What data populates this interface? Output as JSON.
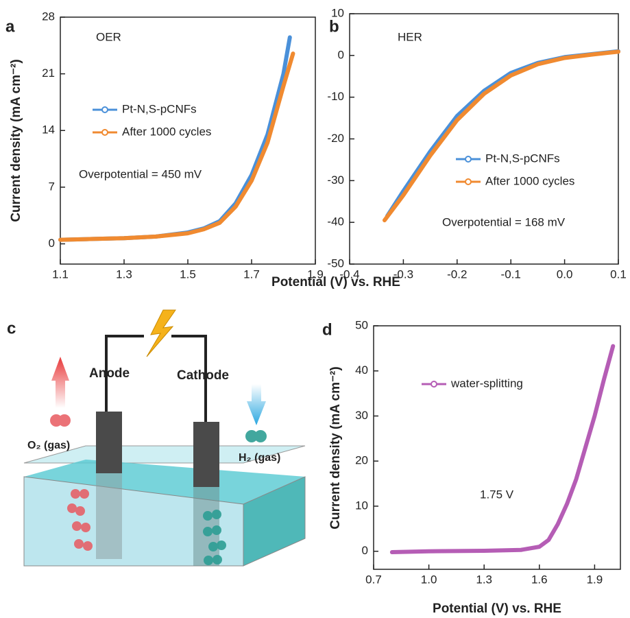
{
  "chart_data": [
    {
      "type": "line",
      "panel_label": "a",
      "annotation": "OER",
      "note": "Overpotential = 450 mV",
      "xlabel": "Potential (V) vs. RHE",
      "ylabel": "Current density (mA cm⁻²)",
      "xlim": [
        1.1,
        1.9
      ],
      "xticks": [
        1.1,
        1.3,
        1.5,
        1.7,
        1.9
      ],
      "ylim": [
        -2.5,
        28
      ],
      "yticks": [
        0,
        7,
        14,
        21,
        28
      ],
      "series": [
        {
          "name": "Pt-N,S-pCNFs",
          "color": "#4a90d9",
          "x": [
            1.1,
            1.2,
            1.3,
            1.4,
            1.5,
            1.55,
            1.6,
            1.65,
            1.7,
            1.75,
            1.8,
            1.82
          ],
          "values": [
            0.5,
            0.6,
            0.7,
            0.9,
            1.4,
            1.9,
            2.8,
            5,
            8.5,
            13.5,
            21,
            25.5
          ]
        },
        {
          "name": "After 1000 cycles",
          "color": "#f08a30",
          "x": [
            1.1,
            1.2,
            1.3,
            1.4,
            1.5,
            1.55,
            1.6,
            1.65,
            1.7,
            1.75,
            1.8,
            1.83
          ],
          "values": [
            0.5,
            0.6,
            0.7,
            0.9,
            1.3,
            1.8,
            2.6,
            4.6,
            7.8,
            12.5,
            19.5,
            23.5
          ]
        }
      ]
    },
    {
      "type": "line",
      "panel_label": "b",
      "annotation": "HER",
      "note": "Overpotential = 168 mV",
      "xlim": [
        -0.4,
        0.1
      ],
      "xticks": [
        -0.4,
        -0.3,
        -0.2,
        -0.1,
        {
          "value": 0,
          "label": "0.0"
        },
        0.1
      ],
      "ylim": [
        -50,
        10
      ],
      "yticks": [
        -50,
        -40,
        -30,
        -20,
        -10,
        0,
        10
      ],
      "series": [
        {
          "name": "Pt-N,S-pCNFs",
          "color": "#4a90d9",
          "x": [
            -0.33,
            -0.3,
            -0.25,
            -0.2,
            -0.15,
            -0.1,
            -0.05,
            0,
            0.05,
            0.1
          ],
          "values": [
            -38.5,
            -32.5,
            -23,
            -14.5,
            -8.5,
            -4.2,
            -1.8,
            -0.4,
            0.3,
            1
          ]
        },
        {
          "name": "After 1000 cycles",
          "color": "#f08a30",
          "x": [
            -0.335,
            -0.3,
            -0.25,
            -0.2,
            -0.15,
            -0.1,
            -0.05,
            0,
            0.05,
            0.1
          ],
          "values": [
            -39.5,
            -33.5,
            -24,
            -15.5,
            -9.2,
            -4.8,
            -2.1,
            -0.6,
            0.2,
            0.9
          ]
        }
      ]
    },
    {
      "type": "line",
      "panel_label": "d",
      "annotation": "1.75 V",
      "xlabel": "Potential (V) vs. RHE",
      "ylabel": "Current density (mA cm⁻²)",
      "xlim": [
        0.7,
        2.04
      ],
      "xticks": [
        0.7,
        {
          "value": 1,
          "label": "1.0"
        },
        1.3,
        1.6,
        1.9
      ],
      "ylim": [
        -4,
        50
      ],
      "yticks": [
        0,
        10,
        20,
        30,
        40,
        50
      ],
      "series": [
        {
          "name": "water-splitting",
          "color": "#b55db5",
          "x": [
            0.8,
            1.0,
            1.3,
            1.5,
            1.6,
            1.65,
            1.7,
            1.75,
            1.8,
            1.85,
            1.9,
            1.95,
            2.0
          ],
          "values": [
            -0.2,
            0,
            0.1,
            0.3,
            1,
            2.5,
            6,
            10.5,
            16,
            23,
            30,
            38,
            45.5
          ]
        }
      ]
    }
  ],
  "diagram": {
    "panel_label": "c",
    "anode": "Anode",
    "cathode": "Cathode",
    "o2": "O₂ (gas)",
    "h2": "H₂ (gas)"
  }
}
